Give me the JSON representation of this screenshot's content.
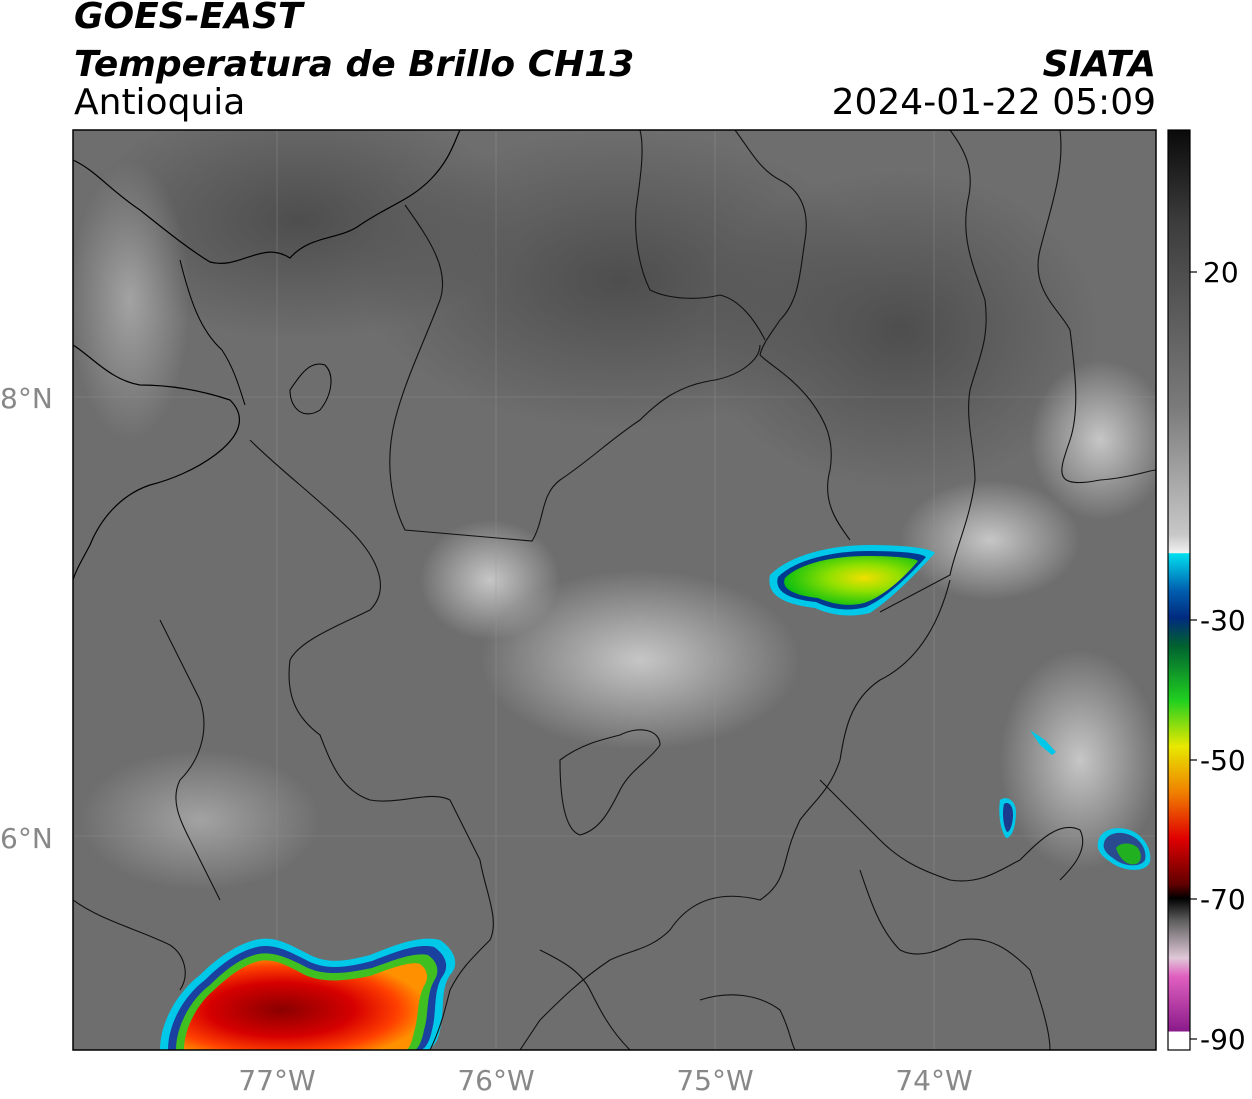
{
  "header": {
    "satellite": "GOES-EAST",
    "product": "Temperatura de Brillo CH13",
    "region": "Antioquia",
    "organization": "SIATA",
    "datetime": "2024-01-22 05:09"
  },
  "axes": {
    "lat_labels": [
      "8°N",
      "6°N"
    ],
    "lon_labels": [
      "77°W",
      "76°W",
      "75°W",
      "74°W"
    ]
  },
  "colorbar": {
    "ticks": [
      "20",
      "-30",
      "-50",
      "-70",
      "-90"
    ]
  },
  "colors": {
    "cold_red": "#cc0000",
    "mid_green": "#22dd00",
    "cyan_edge": "#00c8e8",
    "purple": "#9a2a9a"
  }
}
